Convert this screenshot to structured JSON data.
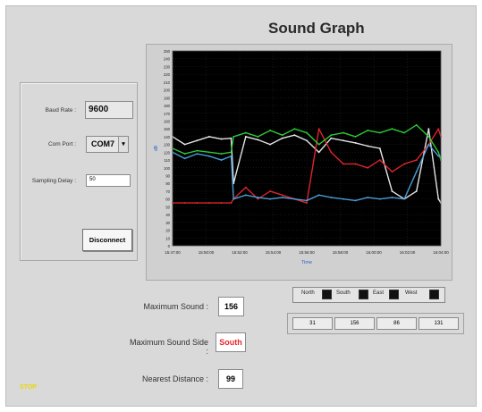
{
  "window": {
    "title": "Sound Graph"
  },
  "controls": {
    "baud_label": "Baud Rate :",
    "baud_value": "9600",
    "port_label": "Com Port :",
    "port_value": "COM7",
    "sampling_label": "Sampling Delay :",
    "sampling_value": "50",
    "disconnect_label": "Disconnect",
    "stop_label": "STOP"
  },
  "stats": {
    "max_sound_label": "Maximum Sound :",
    "max_sound_value": "156",
    "max_side_label": "Maximum Sound Side :",
    "max_side_value": "South",
    "nearest_label": "Nearest Distance :",
    "nearest_value": "99"
  },
  "legend": {
    "items": [
      {
        "label": "North"
      },
      {
        "label": "South"
      },
      {
        "label": "East"
      },
      {
        "label": "West"
      }
    ]
  },
  "readouts": [
    "31",
    "156",
    "86",
    "131"
  ],
  "chart_data": {
    "type": "line",
    "ylabel": "dB",
    "xlabel": "Time",
    "ylim": [
      0,
      250
    ],
    "yticks": [
      0,
      10,
      20,
      30,
      40,
      50,
      60,
      70,
      80,
      90,
      100,
      110,
      120,
      130,
      140,
      150,
      160,
      170,
      180,
      190,
      200,
      210,
      220,
      230,
      240,
      250
    ],
    "ytick_labels": [
      "0",
      "10",
      "20",
      "30",
      "40",
      "50",
      "60",
      "70",
      "80",
      "90",
      "100",
      "110",
      "120",
      "130",
      "140",
      "150",
      "160",
      "170",
      "180",
      "190",
      "200",
      "210",
      "220",
      "230",
      "240",
      "250"
    ],
    "xticks": [
      "15:47:00",
      "15:50:00",
      "15:52:00",
      "15:54:00",
      "15:56:00",
      "15:58:00",
      "16:00:00",
      "16:02:00",
      "16:04:00"
    ],
    "grid": true,
    "background": "#000000",
    "series": [
      {
        "name": "North",
        "color": "#f0f0f0",
        "x": [
          0,
          0.5,
          1,
          1.5,
          2,
          2.4,
          2.5,
          3,
          3.5,
          4,
          4.5,
          5,
          5.5,
          6,
          6.5,
          7,
          7.5,
          8,
          8.5,
          9,
          9.5,
          10,
          10.5,
          10.9,
          11
        ],
        "y": [
          140,
          130,
          135,
          140,
          137,
          138,
          80,
          140,
          136,
          130,
          138,
          142,
          135,
          120,
          138,
          135,
          132,
          128,
          125,
          70,
          60,
          70,
          150,
          60,
          55
        ]
      },
      {
        "name": "South",
        "color": "#e8262d",
        "x": [
          0,
          0.5,
          1,
          1.5,
          2,
          2.4,
          2.5,
          3,
          3.5,
          4,
          4.5,
          5,
          5.5,
          6,
          6.5,
          7,
          7.5,
          8,
          8.5,
          9,
          9.5,
          10,
          10.5,
          10.9,
          11
        ],
        "y": [
          55,
          55,
          55,
          55,
          55,
          55,
          60,
          75,
          60,
          70,
          65,
          60,
          55,
          150,
          120,
          105,
          105,
          100,
          110,
          95,
          105,
          110,
          130,
          150,
          140
        ]
      },
      {
        "name": "East",
        "color": "#2fd13a",
        "x": [
          0,
          0.5,
          1,
          1.5,
          2,
          2.4,
          2.5,
          3,
          3.5,
          4,
          4.5,
          5,
          5.5,
          6,
          6.5,
          7,
          7.5,
          8,
          8.5,
          9,
          9.5,
          10,
          10.5,
          10.9,
          11
        ],
        "y": [
          125,
          118,
          122,
          120,
          118,
          120,
          140,
          145,
          140,
          148,
          142,
          150,
          145,
          130,
          142,
          145,
          140,
          148,
          145,
          150,
          145,
          155,
          140,
          120,
          110
        ]
      },
      {
        "name": "West",
        "color": "#4da3e0",
        "x": [
          0,
          0.5,
          1,
          1.5,
          2,
          2.4,
          2.5,
          3,
          3.5,
          4,
          4.5,
          5,
          5.5,
          6,
          6.5,
          7,
          7.5,
          8,
          8.5,
          9,
          9.5,
          10,
          10.5,
          10.9,
          11
        ],
        "y": [
          120,
          112,
          118,
          115,
          110,
          115,
          60,
          65,
          62,
          60,
          62,
          60,
          58,
          65,
          62,
          60,
          58,
          62,
          60,
          62,
          60,
          95,
          130,
          115,
          115
        ]
      }
    ]
  }
}
